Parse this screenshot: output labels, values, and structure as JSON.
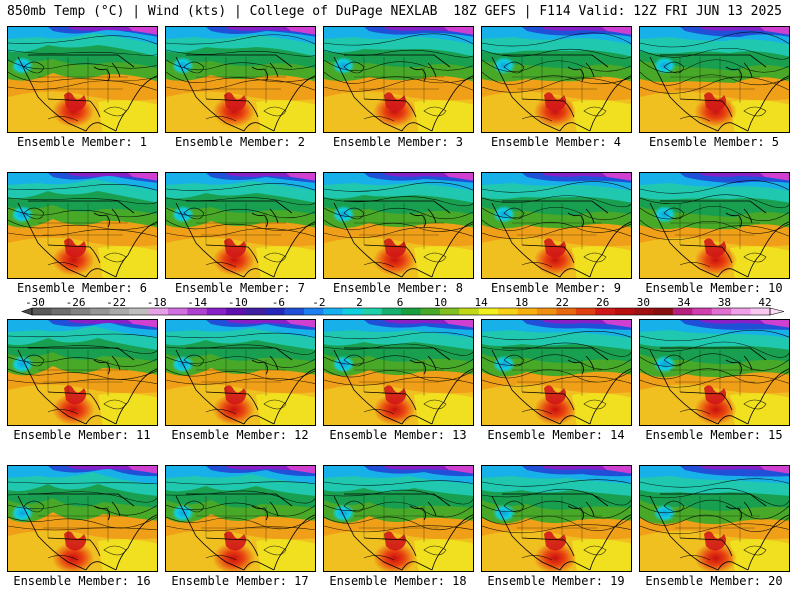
{
  "header": {
    "title_left": "850mb Temp (°C) | Wind (kts) | College of DuPage NEXLAB",
    "title_right": "18Z GEFS | F114 Valid: 12Z FRI JUN 13 2025"
  },
  "panels": [
    {
      "member": 1,
      "label": "Ensemble Member: 1"
    },
    {
      "member": 2,
      "label": "Ensemble Member: 2"
    },
    {
      "member": 3,
      "label": "Ensemble Member: 3"
    },
    {
      "member": 4,
      "label": "Ensemble Member: 4"
    },
    {
      "member": 5,
      "label": "Ensemble Member: 5"
    },
    {
      "member": 6,
      "label": "Ensemble Member: 6"
    },
    {
      "member": 7,
      "label": "Ensemble Member: 7"
    },
    {
      "member": 8,
      "label": "Ensemble Member: 8"
    },
    {
      "member": 9,
      "label": "Ensemble Member: 9"
    },
    {
      "member": 10,
      "label": "Ensemble Member: 10"
    },
    {
      "member": 11,
      "label": "Ensemble Member: 11"
    },
    {
      "member": 12,
      "label": "Ensemble Member: 12"
    },
    {
      "member": 13,
      "label": "Ensemble Member: 13"
    },
    {
      "member": 14,
      "label": "Ensemble Member: 14"
    },
    {
      "member": 15,
      "label": "Ensemble Member: 15"
    },
    {
      "member": 16,
      "label": "Ensemble Member: 16"
    },
    {
      "member": 17,
      "label": "Ensemble Member: 17"
    },
    {
      "member": 18,
      "label": "Ensemble Member: 18"
    },
    {
      "member": 19,
      "label": "Ensemble Member: 19"
    },
    {
      "member": 20,
      "label": "Ensemble Member: 20"
    }
  ],
  "colorbar": {
    "unit": "°C",
    "labels": [
      "-30",
      "-26",
      "-22",
      "-18",
      "-14",
      "-10",
      "-6",
      "-2",
      "2",
      "6",
      "10",
      "14",
      "18",
      "22",
      "26",
      "30",
      "34",
      "38",
      "42"
    ],
    "colors": [
      "#5a5a5a",
      "#6e6e6e",
      "#828282",
      "#969696",
      "#aaaaaa",
      "#bebebe",
      "#e6a0e6",
      "#d070e0",
      "#b040d0",
      "#8820c8",
      "#6010b0",
      "#4020a0",
      "#2828b8",
      "#2050d8",
      "#1e80f0",
      "#18b0f0",
      "#10d0e0",
      "#20d0a8",
      "#18b070",
      "#18a040",
      "#48a828",
      "#80c020",
      "#c0d818",
      "#f0f020",
      "#f8d018",
      "#f8b010",
      "#f09010",
      "#e86810",
      "#e04010",
      "#d01818",
      "#b81010",
      "#a01010",
      "#881010",
      "#b82080",
      "#d040b0",
      "#e070d0",
      "#f0a0e8",
      "#f8c8f0"
    ]
  }
}
